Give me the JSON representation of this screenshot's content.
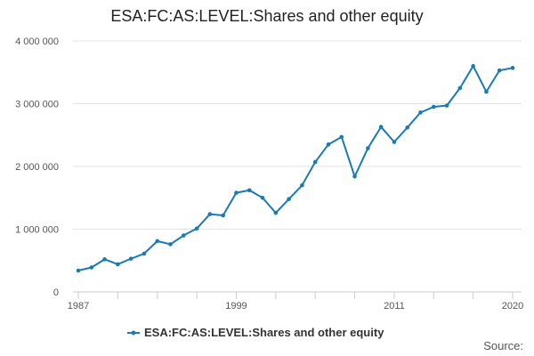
{
  "chart_data": {
    "type": "line",
    "title": "ESA:FC:AS:LEVEL:Shares and other equity",
    "xlabel": "",
    "ylabel": "",
    "x": [
      1987,
      1988,
      1989,
      1990,
      1991,
      1992,
      1993,
      1994,
      1995,
      1996,
      1997,
      1998,
      1999,
      2000,
      2001,
      2002,
      2003,
      2004,
      2005,
      2006,
      2007,
      2008,
      2009,
      2010,
      2011,
      2012,
      2013,
      2014,
      2015,
      2016,
      2017,
      2018,
      2019,
      2020
    ],
    "x_ticks": [
      "1987",
      "1999",
      "2011",
      "2020"
    ],
    "y_ticks": [
      "0",
      "1 000 000",
      "2 000 000",
      "3 000 000",
      "4 000 000"
    ],
    "ylim": [
      0,
      4000000
    ],
    "xlim": [
      1987,
      2020
    ],
    "grid": "horizontal",
    "legend_position": "bottom",
    "series": [
      {
        "name": "ESA:FC:AS:LEVEL:Shares and other equity",
        "color": "#1a7ab5",
        "values": [
          340000,
          390000,
          520000,
          440000,
          530000,
          610000,
          810000,
          760000,
          900000,
          1010000,
          1240000,
          1220000,
          1580000,
          1620000,
          1500000,
          1260000,
          1480000,
          1700000,
          2070000,
          2350000,
          2470000,
          1840000,
          2290000,
          2630000,
          2390000,
          2620000,
          2860000,
          2950000,
          2970000,
          3250000,
          3600000,
          3190000,
          3530000,
          3570000
        ]
      }
    ],
    "source_label": "Source:"
  }
}
